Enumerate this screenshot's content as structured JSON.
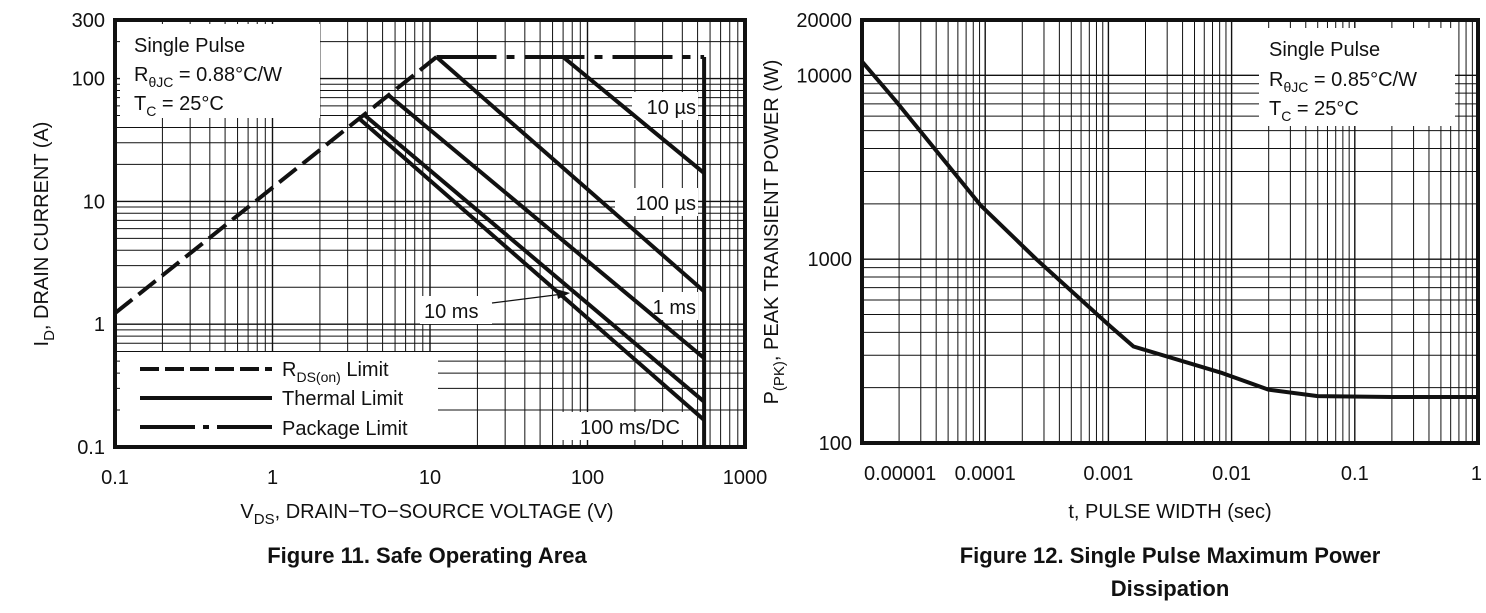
{
  "colors": {
    "line": "#111111",
    "grid": "#111111",
    "background": "#ffffff"
  },
  "chart_data": [
    {
      "type": "line",
      "caption": "Figure 11. Safe Operating Area",
      "xlabel": {
        "main": "V",
        "sub": "DS",
        "rest": ", DRAIN−TO−SOURCE VOLTAGE (V)"
      },
      "ylabel": {
        "main": "I",
        "sub": "D",
        "rest": ", DRAIN CURRENT (A)"
      },
      "xscale": "log",
      "yscale": "log",
      "xlim": [
        0.1,
        1000
      ],
      "ylim": [
        0.1,
        300
      ],
      "xticks": [
        "0.1",
        "1",
        "10",
        "100",
        "1000"
      ],
      "yticks": [
        "300",
        "100",
        "10",
        "1",
        "0.1"
      ],
      "grid": true,
      "annotation": {
        "line1": "Single Pulse",
        "line2": {
          "main": "R",
          "sub": "θJC",
          "rest": " = 0.88°C/W"
        },
        "line3": {
          "main": "T",
          "sub": "C",
          "rest": " = 25°C"
        }
      },
      "legend": {
        "placement": "bottom-left",
        "items": [
          {
            "main": "R",
            "sub": "DS(on)",
            "rest": " Limit",
            "style": "dashed"
          },
          {
            "main": "Thermal Limit",
            "sub": "",
            "rest": "",
            "style": "solid"
          },
          {
            "main": "Package Limit",
            "sub": "",
            "rest": "",
            "style": "dash-dot"
          }
        ]
      },
      "series": [
        {
          "name": "RDS(on) Limit",
          "style": "dashed",
          "points": [
            [
              0.1,
              1.23
            ],
            [
              11,
              150
            ]
          ]
        },
        {
          "name": "Package Limit",
          "style": "dash-dot",
          "points": [
            [
              11,
              150
            ],
            [
              550,
              150
            ]
          ]
        },
        {
          "name": "Thermal Limit",
          "style": "solid",
          "points": [
            [
              550,
              150
            ],
            [
              550,
              0.1
            ]
          ]
        },
        {
          "name": "10 µs",
          "style": "solid",
          "points": [
            [
              70,
              150
            ],
            [
              550,
              17
            ]
          ]
        },
        {
          "name": "100 µs",
          "style": "solid",
          "points": [
            [
              11,
              150
            ],
            [
              550,
              1.85
            ]
          ]
        },
        {
          "name": "1 ms",
          "style": "solid",
          "points": [
            [
              5.4,
              74
            ],
            [
              550,
              0.53
            ]
          ]
        },
        {
          "name": "10 ms",
          "style": "solid",
          "points": [
            [
              3.8,
              51
            ],
            [
              550,
              0.234
            ]
          ]
        },
        {
          "name": "100 ms/DC",
          "style": "solid",
          "points": [
            [
              3.5,
              48
            ],
            [
              550,
              0.166
            ]
          ]
        }
      ],
      "curve_labels": [
        "10 µs",
        "100 µs",
        "1 ms",
        "10 ms",
        "100 ms/DC"
      ]
    },
    {
      "type": "line",
      "caption": "Figure 12. Single Pulse Maximum Power Dissipation",
      "caption_line1": "Figure 12. Single Pulse Maximum Power",
      "caption_line2": "Dissipation",
      "xlabel": {
        "main": "t, PULSE WIDTH (sec)",
        "sub": "",
        "rest": ""
      },
      "ylabel": {
        "main": "P",
        "sub": "(PK)",
        "rest": ", PEAK TRANSIENT POWER (W)"
      },
      "xscale": "log",
      "yscale": "log",
      "xlim": [
        1e-05,
        1
      ],
      "ylim": [
        100,
        20000
      ],
      "xticks": [
        "0.00001",
        "0.0001",
        "0.001",
        "0.01",
        "0.1",
        "1"
      ],
      "yticks": [
        "20000",
        "10000",
        "1000",
        "100"
      ],
      "grid": true,
      "annotation": {
        "line1": "Single Pulse",
        "line2": {
          "main": "R",
          "sub": "θJC",
          "rest": " = 0.85°C/W"
        },
        "line3": {
          "main": "T",
          "sub": "C",
          "rest": " = 25°C"
        }
      },
      "series": [
        {
          "style": "solid",
          "points": [
            [
              1e-05,
              11900
            ],
            [
              1.9e-05,
              7200
            ],
            [
              9.2e-05,
              1960
            ],
            [
              0.00026,
              1000
            ],
            [
              0.00104,
              430
            ],
            [
              0.0016,
              335
            ],
            [
              0.0084,
              240
            ],
            [
              0.02,
              195
            ],
            [
              0.05,
              180
            ],
            [
              0.2,
              178
            ],
            [
              1,
              178
            ]
          ]
        }
      ]
    }
  ]
}
